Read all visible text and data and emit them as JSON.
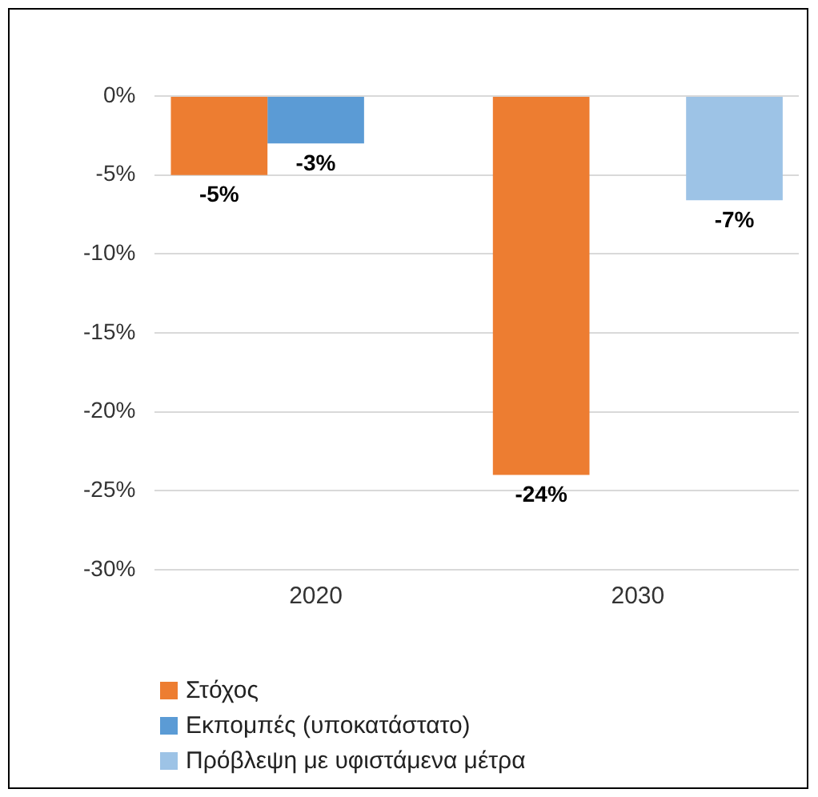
{
  "chart_data": {
    "type": "bar",
    "categories": [
      "2020",
      "2030"
    ],
    "series": [
      {
        "name": "Στόχος",
        "color": "#ed7d31",
        "values": [
          -5,
          -24
        ],
        "value_labels": [
          "-5%",
          "-24%"
        ]
      },
      {
        "name": "Εκπομπές (υποκατάστατο)",
        "color": "#5b9bd5",
        "values": [
          -3,
          null
        ],
        "value_labels": [
          "-3%",
          null
        ]
      },
      {
        "name": "Πρόβλεψη με υφιστάμενα μέτρα",
        "color": "#9dc3e6",
        "values": [
          null,
          -6.6
        ],
        "value_labels": [
          null,
          "-7%"
        ]
      }
    ],
    "ylim": [
      -30,
      0
    ],
    "yticks": [
      {
        "value": 0,
        "label": "0%"
      },
      {
        "value": -5,
        "label": "-5%"
      },
      {
        "value": -10,
        "label": "-10%"
      },
      {
        "value": -15,
        "label": "-15%"
      },
      {
        "value": -20,
        "label": "-20%"
      },
      {
        "value": -25,
        "label": "-25%"
      },
      {
        "value": -30,
        "label": "-30%"
      }
    ],
    "grid": "y",
    "legend": "bottom"
  }
}
